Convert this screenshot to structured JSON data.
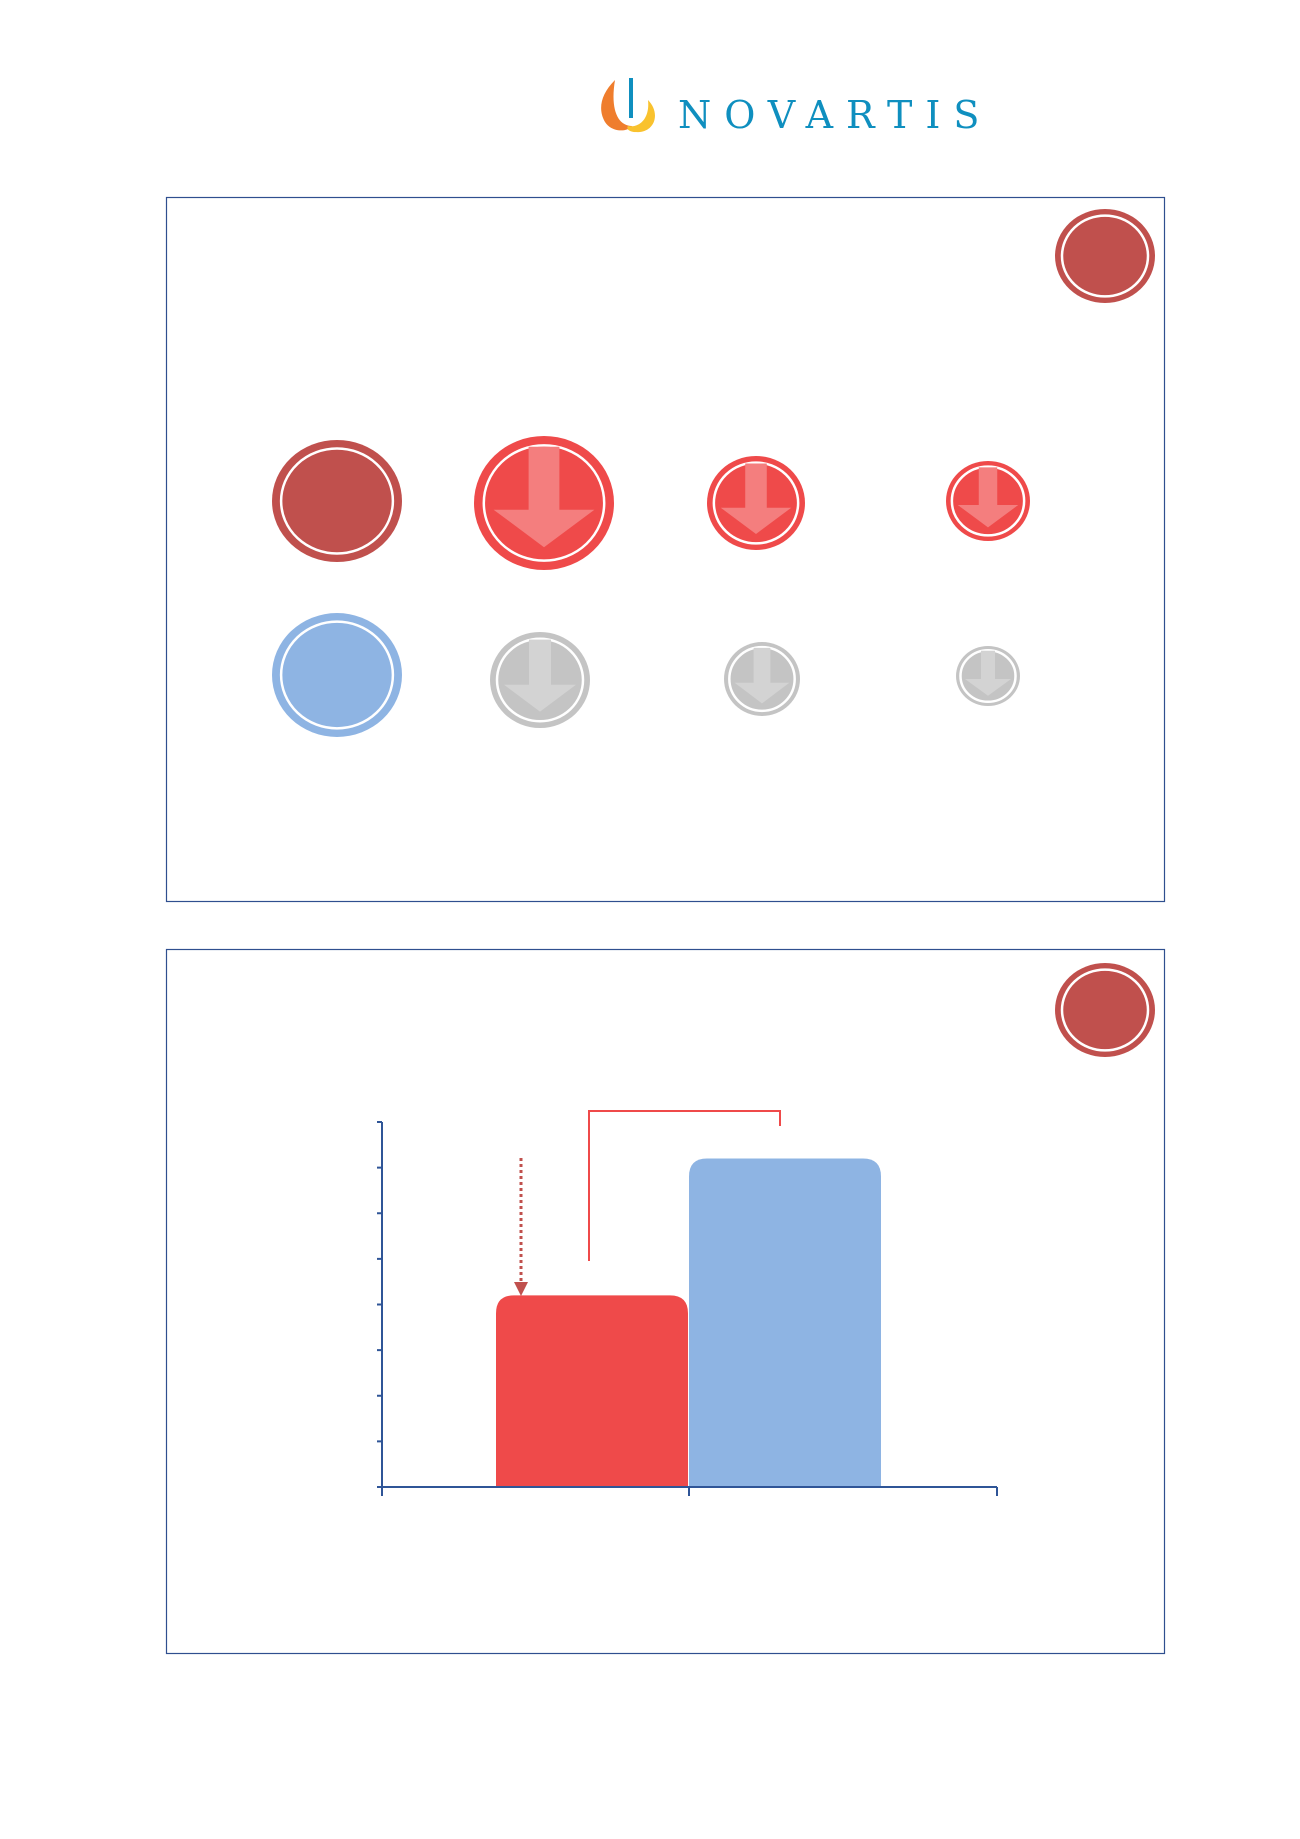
{
  "logo": {
    "text": "NOVARTIS",
    "color": "#0f8fbf"
  },
  "colors": {
    "frame": "#2f4f8f",
    "dark_red": "#c0504d",
    "red": "#ef4a4a",
    "light_red": "#f47e7e",
    "blue": "#8eb4e3",
    "gray": "#c4c4c4",
    "light_gray": "#d3d3d3",
    "axis": "#2f5597"
  },
  "panel1": {
    "badge": "dark-red-circle",
    "row1": [
      "dark-red-circle",
      "red-down-arrow-circle-large",
      "red-down-arrow-circle-medium",
      "red-down-arrow-circle-small"
    ],
    "row2": [
      "blue-circle",
      "gray-down-arrow-circle-large",
      "gray-down-arrow-circle-medium",
      "gray-down-arrow-circle-small"
    ]
  },
  "panel2": {
    "badge": "dark-red-circle"
  },
  "chart_data": {
    "type": "bar",
    "categories": [
      "",
      ""
    ],
    "values": [
      4.2,
      7.2
    ],
    "colors": [
      "#ef4a4a",
      "#8eb4e3"
    ],
    "ylim": [
      0,
      8
    ],
    "y_ticks": 8,
    "grid": false,
    "annotations": [
      "dotted-down-arrow-to-bar-1",
      "comparison-bracket"
    ]
  }
}
